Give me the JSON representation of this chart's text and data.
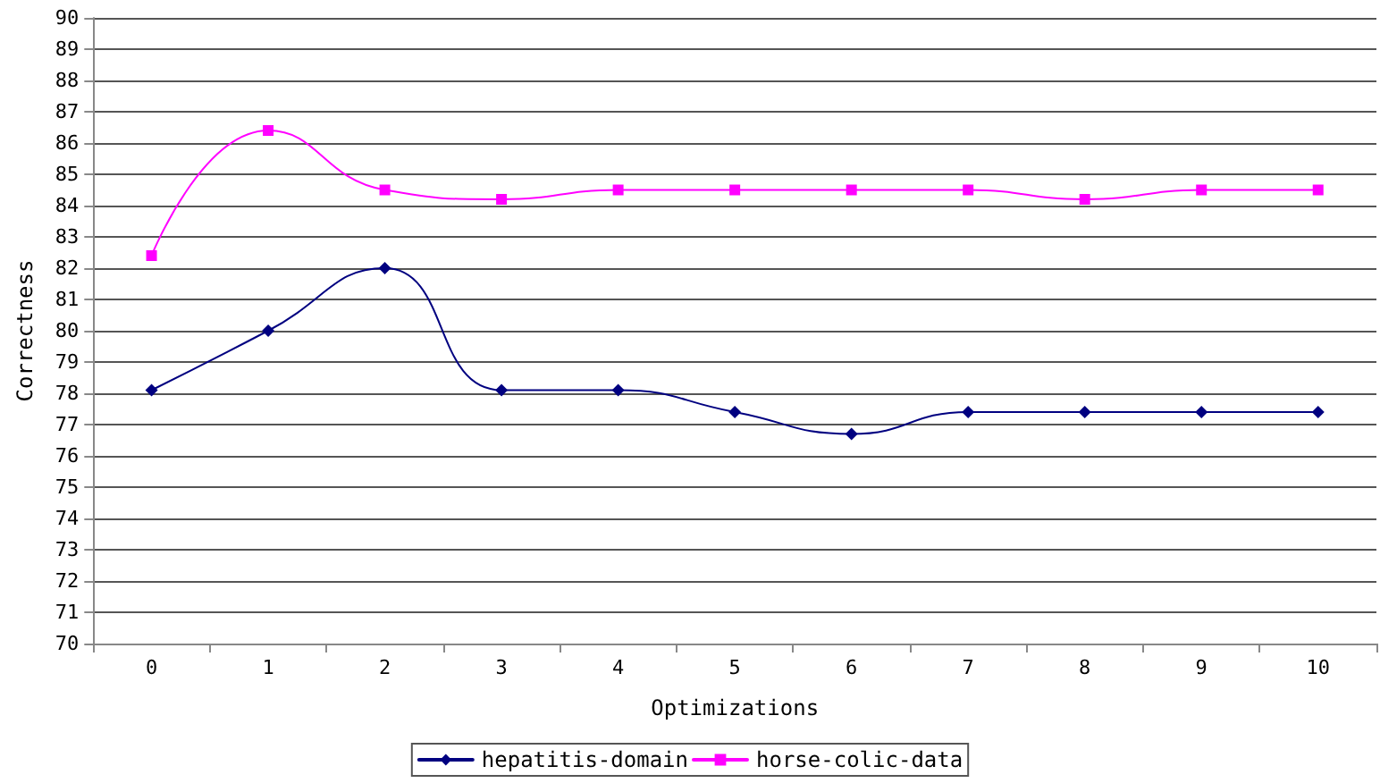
{
  "chart_data": {
    "type": "line",
    "xlabel": "Optimizations",
    "ylabel": "Correctness",
    "categories": [
      "0",
      "1",
      "2",
      "3",
      "4",
      "5",
      "6",
      "7",
      "8",
      "9",
      "10"
    ],
    "series": [
      {
        "name": "hepatitis-domain",
        "color": "#000080",
        "marker": "diamond",
        "values": [
          78.1,
          80.0,
          82.0,
          78.1,
          78.1,
          77.4,
          76.7,
          77.4,
          77.4,
          77.4,
          77.4
        ]
      },
      {
        "name": "horse-colic-data",
        "color": "#ff00ff",
        "marker": "square",
        "values": [
          82.4,
          86.4,
          84.5,
          84.2,
          84.5,
          84.5,
          84.5,
          84.5,
          84.2,
          84.5,
          84.5
        ]
      }
    ],
    "ylim": [
      70,
      90
    ],
    "yticks": [
      70,
      71,
      72,
      73,
      74,
      75,
      76,
      77,
      78,
      79,
      80,
      81,
      82,
      83,
      84,
      85,
      86,
      87,
      88,
      89,
      90
    ],
    "grid": "y",
    "legend": "bottom",
    "line_style": "solid"
  }
}
